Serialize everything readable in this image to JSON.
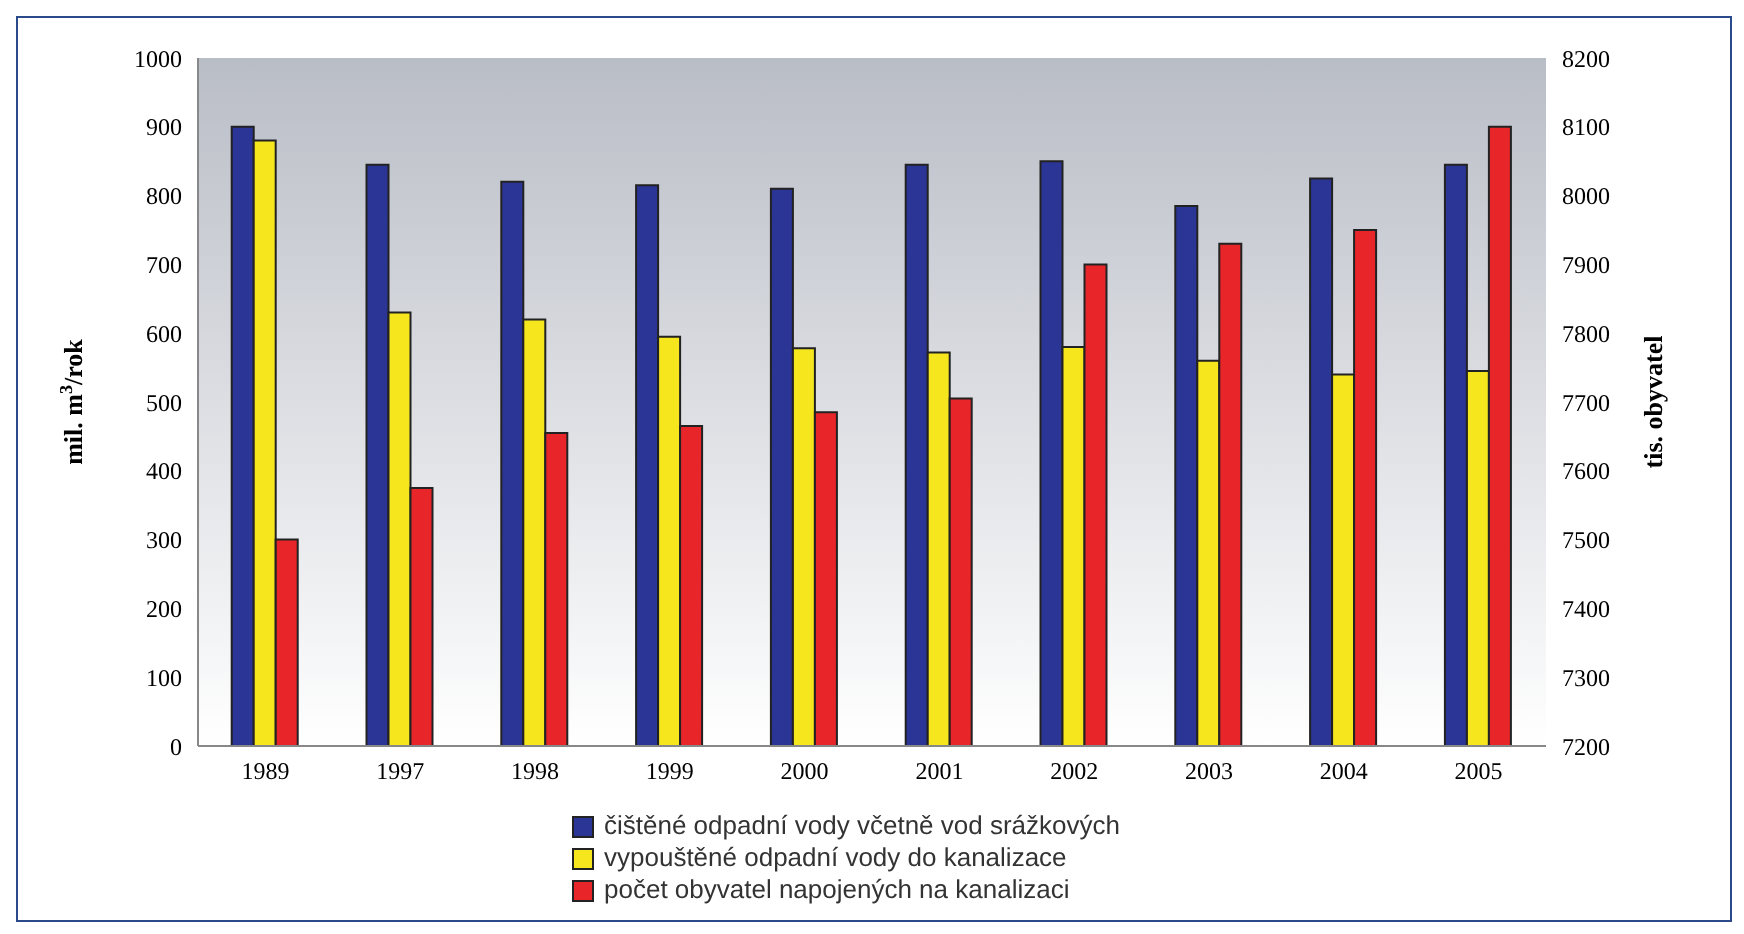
{
  "chart_data": {
    "type": "bar",
    "categories": [
      "1989",
      "1997",
      "1998",
      "1999",
      "2000",
      "2001",
      "2002",
      "2003",
      "2004",
      "2005"
    ],
    "series": [
      {
        "name": "čištěné odpadní vody včetně vod srážkových",
        "color": "#2b3595",
        "values": [
          900,
          845,
          820,
          815,
          810,
          845,
          850,
          785,
          825,
          845
        ]
      },
      {
        "name": "vypouštěné odpadní vody do kanalizace",
        "color": "#f5e61e",
        "values": [
          880,
          630,
          620,
          595,
          578,
          572,
          580,
          560,
          540,
          545
        ]
      },
      {
        "name": "počet obyvatel napojených na kanalizaci",
        "color": "#e8262a",
        "axis": "y2",
        "values": [
          7500,
          7575,
          7655,
          7665,
          7685,
          7705,
          7900,
          7930,
          7950,
          8100
        ]
      }
    ],
    "ylabel": "mil. m$^{3}$/rok",
    "y2label": "tis. obyvatel",
    "ylim": [
      0,
      1000
    ],
    "yticks": [
      0,
      100,
      200,
      300,
      400,
      500,
      600,
      700,
      800,
      900,
      1000
    ],
    "y2lim": [
      7200,
      8200
    ],
    "y2ticks": [
      7200,
      7300,
      7400,
      7500,
      7600,
      7700,
      7800,
      7900,
      8000,
      8100,
      8200
    ],
    "grid": false,
    "legend": "bottom"
  }
}
